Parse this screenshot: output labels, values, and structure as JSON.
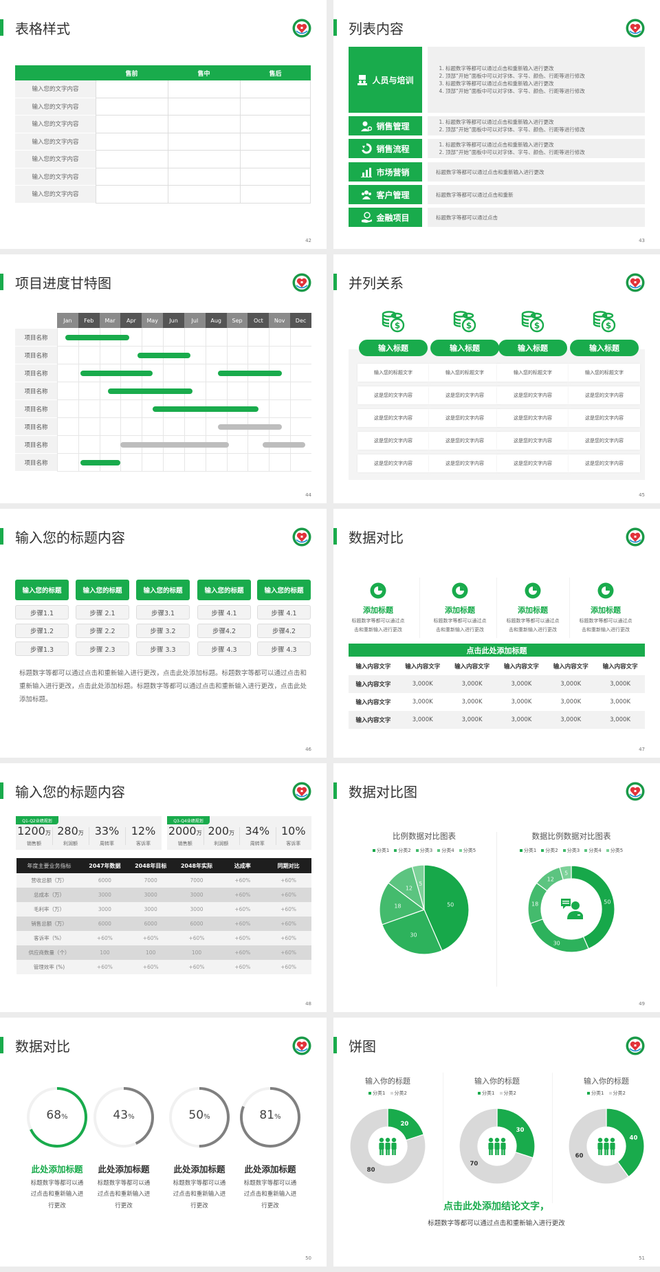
{
  "brand_color": "#19ab4c",
  "slides": {
    "s42": {
      "title": "表格样式",
      "page": "42",
      "headers": [
        "",
        "售前",
        "售中",
        "售后"
      ],
      "rows": [
        "输入您的文字内容",
        "输入您的文字内容",
        "输入您的文字内容",
        "输入您的文字内容",
        "输入您的文字内容",
        "输入您的文字内容",
        "输入您的文字内容"
      ]
    },
    "s43": {
      "title": "列表内容",
      "page": "43",
      "items": [
        {
          "label": "人员与培训",
          "icon": "people-board-icon",
          "numbered": true,
          "lines": [
            "标题数字等都可以通过点击和重新输入进行更改",
            "顶部“开始”面板中可以对字体、字号、颜色、行距等进行修改",
            "标题数字等都可以通过点击和重新输入进行更改",
            "顶部“开始”面板中可以对字体、字号、颜色、行距等进行修改"
          ]
        },
        {
          "label": "销售管理",
          "icon": "person-gear-icon",
          "numbered": true,
          "lines": [
            "标题数字等都可以通过点击和重新输入进行更改",
            "顶部“开始”面板中可以对字体、字号、颜色、行距等进行修改"
          ]
        },
        {
          "label": "销售流程",
          "icon": "cycle-icon",
          "numbered": true,
          "lines": [
            "标题数字等都可以通过点击和重新输入进行更改",
            "顶部“开始”面板中可以对字体、字号、颜色、行距等进行修改"
          ]
        },
        {
          "label": "市场营销",
          "icon": "bar-chart-icon",
          "numbered": false,
          "lines": [
            "标题数字等都可以通过点击和重新输入进行更改"
          ]
        },
        {
          "label": "客户管理",
          "icon": "group-icon",
          "numbered": false,
          "lines": [
            "标题数字等都可以通过点击和重新"
          ]
        },
        {
          "label": "金融项目",
          "icon": "money-hand-icon",
          "numbered": false,
          "lines": [
            "标题数字等都可以通过点击"
          ]
        }
      ]
    },
    "s44": {
      "title": "项目进度甘特图",
      "page": "44"
    },
    "s45": {
      "title": "并列关系",
      "page": "45",
      "columns": [
        {
          "heading": "输入标题",
          "cells": [
            "输入您的标题文字",
            "这是您的文字内容",
            "这是您的文字内容",
            "这是您的文字内容",
            "这是您的文字内容"
          ]
        },
        {
          "heading": "输入标题",
          "cells": [
            "输入您的标题文字",
            "这是您的文字内容",
            "这是您的文字内容",
            "这是您的文字内容",
            "这是您的文字内容"
          ]
        },
        {
          "heading": "输入标题",
          "cells": [
            "输入您的标题文字",
            "这是您的文字内容",
            "这是您的文字内容",
            "这是您的文字内容",
            "这是您的文字内容"
          ]
        },
        {
          "heading": "输入标题",
          "cells": [
            "输入您的标题文字",
            "这是您的文字内容",
            "这是您的文字内容",
            "这是您的文字内容",
            "这是您的文字内容"
          ]
        }
      ]
    },
    "s46": {
      "title": "输入您的标题内容",
      "page": "46",
      "columns": [
        {
          "heading": "输入您的标题",
          "steps": [
            "步骤1.1",
            "步骤1.2",
            "步骤1.3"
          ]
        },
        {
          "heading": "输入您的标题",
          "steps": [
            "步骤 2.1",
            "步骤 2.2",
            "步骤 2.3"
          ]
        },
        {
          "heading": "输入您的标题",
          "steps": [
            "步骤3.1",
            "步骤 3.2",
            "步骤 3.3"
          ]
        },
        {
          "heading": "输入您的标题",
          "steps": [
            "步骤 4.1",
            "步骤4.2",
            "步骤 4.3"
          ]
        },
        {
          "heading": "输入您的标题",
          "steps": [
            "步骤 4.1",
            "步骤4.2",
            "步骤 4.3"
          ]
        }
      ],
      "paragraph": "标题数字等都可以通过点击和重新输入进行更改，点击此处添加标题。标题数字等都可以通过点击和重新输入进行更改，点击此处添加标题。标题数字等都可以通过点击和重新输入进行更改，点击此处添加标题。"
    },
    "s47": {
      "title": "数据对比",
      "page": "47",
      "features": [
        {
          "title": "添加标题",
          "lines": [
            "标题数字等都可以通过点",
            "击和重新输入进行更改"
          ]
        },
        {
          "title": "添加标题",
          "lines": [
            "标题数字等都可以通过点",
            "击和重新输入进行更改"
          ]
        },
        {
          "title": "添加标题",
          "lines": [
            "标题数字等都可以通过点",
            "击和重新输入进行更改"
          ]
        },
        {
          "title": "添加标题",
          "lines": [
            "标题数字等都可以通过点",
            "击和重新输入进行更改"
          ]
        }
      ],
      "banner": "点击此处添加标题",
      "headers": [
        "输入内容文字",
        "输入内容文字",
        "输入内容文字",
        "输入内容文字",
        "输入内容文字",
        "输入内容文字"
      ],
      "rows": [
        [
          "输入内容文字",
          "3,000K",
          "3,000K",
          "3,000K",
          "3,000K",
          "3,000K"
        ],
        [
          "输入内容文字",
          "3,000K",
          "3,000K",
          "3,000K",
          "3,000K",
          "3,000K"
        ],
        [
          "输入内容文字",
          "3,000K",
          "3,000K",
          "3,000K",
          "3,000K",
          "3,000K"
        ]
      ]
    },
    "s48": {
      "title": "输入您的标题内容",
      "page": "48",
      "kpi_groups": [
        {
          "tag": "Q1-Q2业绩规划",
          "stats": [
            {
              "value": "1200",
              "unit": "万",
              "label": "销售额"
            },
            {
              "value": "280",
              "unit": "万",
              "label": "利润额"
            },
            {
              "value": "33%",
              "unit": "",
              "label": "周转率"
            },
            {
              "value": "12%",
              "unit": "",
              "label": "客诉率"
            }
          ]
        },
        {
          "tag": "Q3-Q4业绩规划",
          "stats": [
            {
              "value": "2000",
              "unit": "万",
              "label": "销售额"
            },
            {
              "value": "200",
              "unit": "万",
              "label": "利润额"
            },
            {
              "value": "34%",
              "unit": "",
              "label": "周转率"
            },
            {
              "value": "10%",
              "unit": "",
              "label": "客诉率"
            }
          ]
        }
      ],
      "headers": [
        "年度主要业务指标",
        "2047年数据",
        "2048年目标",
        "2048年实际",
        "达成率",
        "同期对比"
      ],
      "rows": [
        [
          "营收总额（万）",
          "6000",
          "7000",
          "7000",
          "+60%",
          "+60%"
        ],
        [
          "总成本（万）",
          "3000",
          "3000",
          "3000",
          "+60%",
          "+60%"
        ],
        [
          "毛利率（万）",
          "3000",
          "3000",
          "3000",
          "+60%",
          "+60%"
        ],
        [
          "销售总额（万）",
          "6000",
          "6000",
          "6000",
          "+60%",
          "+60%"
        ],
        [
          "客诉率（%）",
          "+60%",
          "+60%",
          "+60%",
          "+60%",
          "+60%"
        ],
        [
          "供应商数量（个）",
          "100",
          "100",
          "100",
          "+60%",
          "+60%"
        ],
        [
          "管理效率 (%)",
          "+60%",
          "+60%",
          "+60%",
          "+60%",
          "+60%"
        ]
      ]
    },
    "s49": {
      "title": "数据对比图",
      "page": "49"
    },
    "s50": {
      "title": "数据对比",
      "page": "50",
      "rings": [
        {
          "value": 68,
          "percent_sign": "%",
          "title": "此处添加标题",
          "lines": [
            "标题数字等都可以通",
            "过点击和重新输入进",
            "行更改"
          ],
          "color": "#19ab4c"
        },
        {
          "value": 43,
          "percent_sign": "%",
          "title": "此处添加标题",
          "lines": [
            "标题数字等都可以通",
            "过点击和重新输入进",
            "行更改"
          ],
          "color": "#808080"
        },
        {
          "value": 50,
          "percent_sign": "%",
          "title": "此处添加标题",
          "lines": [
            "标题数字等都可以通",
            "过点击和重新输入进",
            "行更改"
          ],
          "color": "#808080"
        },
        {
          "value": 81,
          "percent_sign": "%",
          "title": "此处添加标题",
          "lines": [
            "标题数字等都可以通",
            "过点击和重新输入进",
            "行更改"
          ],
          "color": "#808080"
        }
      ]
    },
    "s51": {
      "title": "饼图",
      "page": "51",
      "conclusion": "点击此处添加结论文字，",
      "subtext": "标题数字等都可以通过点击和重新输入进行更改"
    }
  },
  "chart_data": [
    {
      "type": "gantt",
      "categories": [
        "Jan",
        "Feb",
        "Mar",
        "Apr",
        "May",
        "Jun",
        "Jul",
        "Aug",
        "Sep",
        "Oct",
        "Nov",
        "Dec"
      ],
      "tasks": [
        {
          "name": "项目名称",
          "bars": [
            {
              "start": 0.4,
              "end": 3.4,
              "status": "active"
            }
          ]
        },
        {
          "name": "项目名称",
          "bars": [
            {
              "start": 3.8,
              "end": 6.3,
              "status": "active"
            }
          ]
        },
        {
          "name": "项目名称",
          "bars": [
            {
              "start": 1.1,
              "end": 4.5,
              "status": "active"
            },
            {
              "start": 7.6,
              "end": 10.6,
              "status": "active"
            }
          ]
        },
        {
          "name": "项目名称",
          "bars": [
            {
              "start": 2.4,
              "end": 6.4,
              "status": "active"
            }
          ]
        },
        {
          "name": "项目名称",
          "bars": [
            {
              "start": 4.5,
              "end": 9.5,
              "status": "active"
            }
          ]
        },
        {
          "name": "项目名称",
          "bars": [
            {
              "start": 7.6,
              "end": 10.6,
              "status": "planned"
            }
          ]
        },
        {
          "name": "项目名称",
          "bars": [
            {
              "start": 3.0,
              "end": 8.1,
              "status": "planned"
            },
            {
              "start": 9.7,
              "end": 11.7,
              "status": "planned"
            }
          ]
        },
        {
          "name": "项目名称",
          "bars": [
            {
              "start": 1.1,
              "end": 3.0,
              "status": "active"
            }
          ]
        }
      ],
      "colors": {
        "active": "#19ab4c",
        "planned": "#bdbdbd"
      }
    },
    {
      "type": "pie",
      "title": "比例数据对比图表",
      "categories": [
        "分类1",
        "分类2",
        "分类3",
        "分类4",
        "分类5"
      ],
      "values": [
        50,
        30,
        18,
        12,
        5
      ],
      "colors": [
        "#17a84a",
        "#2db25c",
        "#44bb6d",
        "#5cc480",
        "#7cd198"
      ],
      "legend": "top"
    },
    {
      "type": "donut",
      "title": "数据比例数据对比图表",
      "categories": [
        "分类1",
        "分类2",
        "分类3",
        "分类4",
        "分类5"
      ],
      "values": [
        50,
        30,
        18,
        12,
        5
      ],
      "colors": [
        "#17a84a",
        "#2db25c",
        "#44bb6d",
        "#5cc480",
        "#7cd198"
      ],
      "legend": "top"
    },
    {
      "type": "donut",
      "title": "输入你的标题",
      "categories": [
        "分类1",
        "分类2"
      ],
      "values": [
        20,
        80
      ],
      "colors": [
        "#19ab4c",
        "#d9d9d9"
      ],
      "legend": "top"
    },
    {
      "type": "donut",
      "title": "输入你的标题",
      "categories": [
        "分类1",
        "分类2"
      ],
      "values": [
        30,
        70
      ],
      "colors": [
        "#19ab4c",
        "#d9d9d9"
      ],
      "legend": "top"
    },
    {
      "type": "donut",
      "title": "输入你的标题",
      "categories": [
        "分类1",
        "分类2"
      ],
      "values": [
        40,
        60
      ],
      "colors": [
        "#19ab4c",
        "#d9d9d9"
      ],
      "legend": "top"
    }
  ]
}
